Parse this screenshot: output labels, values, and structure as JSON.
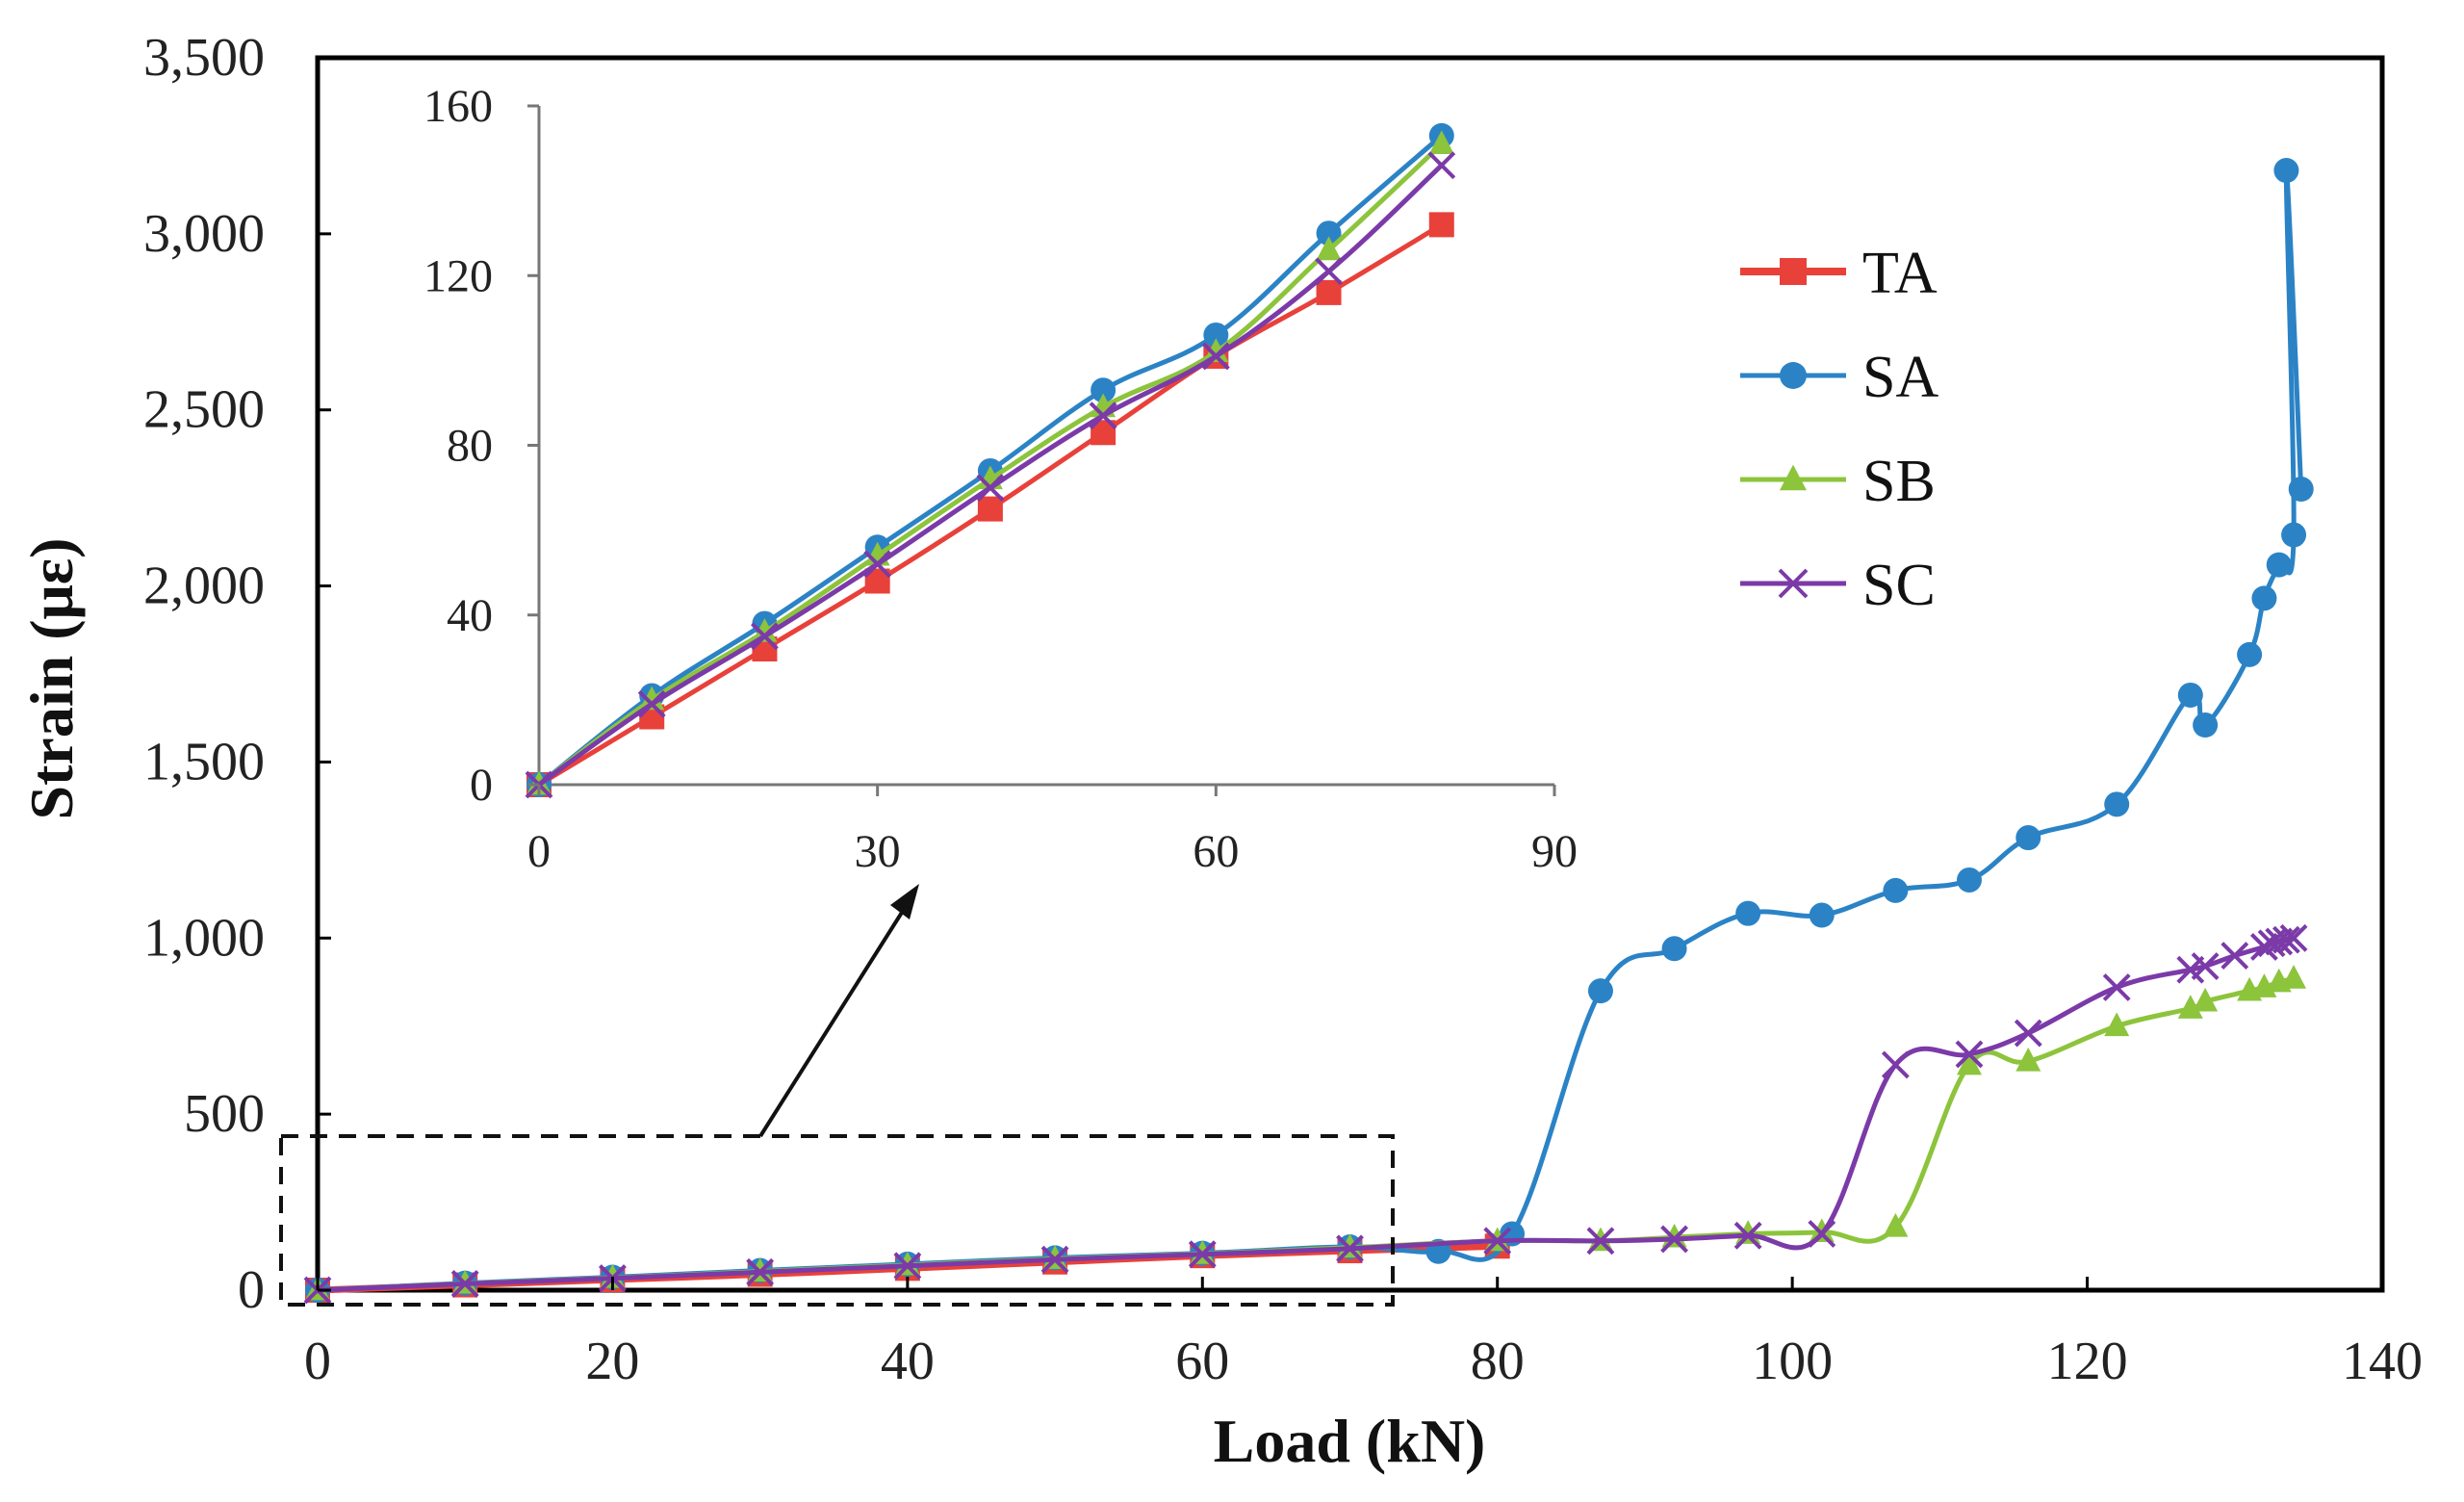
{
  "chart_data": {
    "type": "line",
    "xlabel": "Load (kN)",
    "ylabel": "Strain (με)",
    "xlim": [
      0,
      140
    ],
    "ylim": [
      0,
      3500
    ],
    "xticks": [
      "0",
      "20",
      "40",
      "60",
      "80",
      "100",
      "120",
      "140"
    ],
    "yticks": [
      "0",
      "500",
      "1,000",
      "1,500",
      "2,000",
      "2,500",
      "3,000",
      "3,500"
    ],
    "legend": [
      "TA",
      "SA",
      "SB",
      "SC"
    ],
    "colors": {
      "TA": "#e8413a",
      "SA": "#2b83c6",
      "SB": "#8cc43c",
      "SC": "#7b3aa8"
    },
    "series": [
      {
        "name": "TA",
        "x": [
          0,
          10,
          20,
          30,
          40,
          50,
          60,
          70,
          80
        ],
        "y": [
          0,
          15,
          30,
          45,
          62,
          80,
          98,
          112,
          125
        ]
      },
      {
        "name": "SA",
        "x": [
          0,
          10,
          20,
          30,
          40,
          50,
          60,
          70,
          76,
          81,
          87,
          92,
          97,
          102,
          107,
          112,
          116,
          122,
          127,
          128,
          131,
          132,
          133,
          134,
          133.5,
          134.5
        ],
        "y": [
          0,
          20,
          37,
          56,
          74,
          92,
          105,
          123,
          110,
          160,
          850,
          970,
          1070,
          1065,
          1135,
          1165,
          1285,
          1380,
          1690,
          1605,
          1805,
          1965,
          2060,
          2145,
          3180,
          2275
        ]
      },
      {
        "name": "SB",
        "x": [
          0,
          10,
          20,
          30,
          40,
          50,
          60,
          70,
          80,
          87,
          92,
          97,
          102,
          107,
          112,
          116,
          122,
          127,
          128,
          131,
          132,
          133,
          134
        ],
        "y": [
          0,
          19,
          35,
          53,
          71,
          89,
          103,
          121,
          140,
          140,
          150,
          160,
          165,
          180,
          640,
          650,
          750,
          800,
          820,
          850,
          860,
          875,
          885
        ]
      },
      {
        "name": "SC",
        "x": [
          0,
          10,
          20,
          30,
          40,
          50,
          60,
          70,
          80,
          87,
          92,
          97,
          102,
          107,
          112,
          116,
          122,
          127,
          128,
          130,
          132,
          132.5,
          133,
          133.5,
          134
        ],
        "y": [
          0,
          18,
          34,
          51,
          69,
          87,
          102,
          118,
          140,
          140,
          145,
          155,
          160,
          640,
          670,
          730,
          860,
          910,
          920,
          950,
          975,
          985,
          990,
          995,
          1000
        ]
      }
    ],
    "inset": {
      "xlim": [
        0,
        90
      ],
      "ylim": [
        0,
        160
      ],
      "xticks": [
        "0",
        "30",
        "60",
        "90"
      ],
      "yticks": [
        "0",
        "40",
        "80",
        "120",
        "160"
      ],
      "series": [
        {
          "name": "TA",
          "x": [
            0,
            10,
            20,
            30,
            40,
            50,
            60,
            70,
            80
          ],
          "y": [
            0,
            16,
            32,
            48,
            65,
            83,
            101,
            116,
            132
          ]
        },
        {
          "name": "SA",
          "x": [
            0,
            10,
            20,
            30,
            40,
            50,
            60,
            70,
            80
          ],
          "y": [
            0,
            21,
            38,
            56,
            74,
            93,
            106,
            130,
            153
          ]
        },
        {
          "name": "SB",
          "x": [
            0,
            10,
            20,
            30,
            40,
            50,
            60,
            70,
            80
          ],
          "y": [
            0,
            20,
            36,
            54,
            72,
            89,
            102,
            126,
            151
          ]
        },
        {
          "name": "SC",
          "x": [
            0,
            10,
            20,
            30,
            40,
            50,
            60,
            70,
            80
          ],
          "y": [
            0,
            19,
            35,
            52,
            70,
            87,
            101,
            121,
            146
          ]
        }
      ]
    }
  }
}
